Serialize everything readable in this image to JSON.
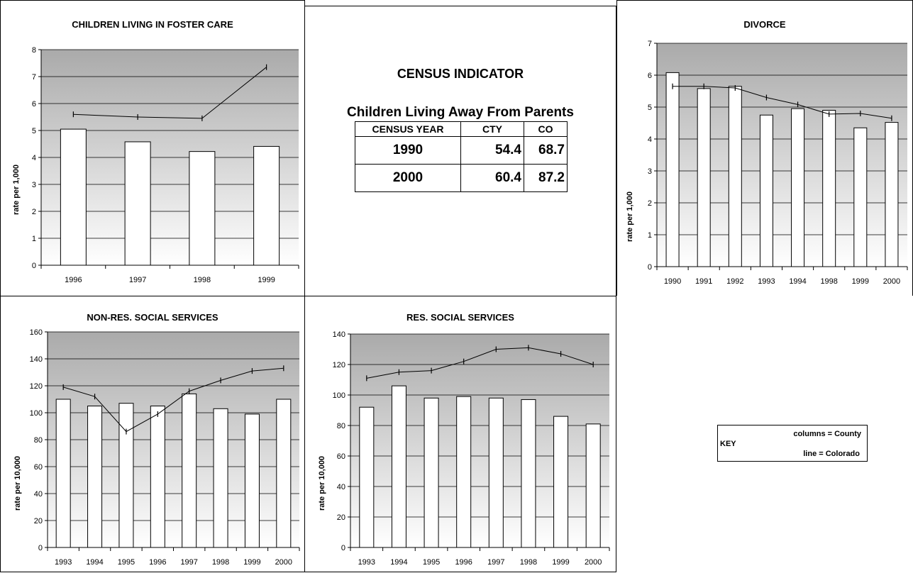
{
  "chart_data": [
    {
      "type": "bar",
      "title": "CHILDREN LIVING IN FOSTER CARE",
      "ylabel": "rate per 1,000",
      "xlabel": "",
      "categories": [
        "1996",
        "1997",
        "1998",
        "1999"
      ],
      "series": [
        {
          "name": "County",
          "values": [
            5.05,
            4.58,
            4.22,
            4.41
          ]
        },
        {
          "name": "Colorado",
          "values": [
            5.6,
            5.5,
            5.45,
            7.35
          ]
        }
      ],
      "ylim": [
        0,
        8
      ],
      "yticks": [
        "0",
        "1",
        "2",
        "3",
        "4",
        "5",
        "6",
        "7",
        "8"
      ]
    },
    {
      "type": "bar",
      "title": "DIVORCE",
      "ylabel": "rate per 1,000",
      "xlabel": "",
      "categories": [
        "1990",
        "1991",
        "1992",
        "1993",
        "1994",
        "1998",
        "1999",
        "2000"
      ],
      "series": [
        {
          "name": "County",
          "values": [
            6.08,
            5.58,
            5.65,
            4.75,
            4.95,
            4.9,
            4.35,
            4.52
          ]
        },
        {
          "name": "Colorado",
          "values": [
            5.65,
            5.65,
            5.6,
            5.3,
            5.08,
            4.78,
            4.8,
            4.65
          ]
        }
      ],
      "ylim": [
        0,
        7
      ],
      "yticks": [
        "0",
        "1",
        "2",
        "3",
        "4",
        "5",
        "6",
        "7"
      ]
    },
    {
      "type": "bar",
      "title": "NON-RES. SOCIAL SERVICES",
      "ylabel": "rate per 10,000",
      "xlabel": "",
      "categories": [
        "1993",
        "1994",
        "1995",
        "1996",
        "1997",
        "1998",
        "1999",
        "2000"
      ],
      "series": [
        {
          "name": "County",
          "values": [
            110,
            105,
            107,
            105,
            114,
            103,
            99,
            110
          ]
        },
        {
          "name": "Colorado",
          "values": [
            119,
            112,
            86,
            99,
            116,
            124,
            131,
            133
          ]
        }
      ],
      "ylim": [
        0,
        160
      ],
      "yticks": [
        "0",
        "20",
        "40",
        "60",
        "80",
        "100",
        "120",
        "140",
        "160"
      ]
    },
    {
      "type": "bar",
      "title": "RES. SOCIAL SERVICES",
      "ylabel": "rate per 10,000",
      "xlabel": "",
      "categories": [
        "1993",
        "1994",
        "1995",
        "1996",
        "1997",
        "1998",
        "1999",
        "2000"
      ],
      "series": [
        {
          "name": "County",
          "values": [
            92,
            106,
            98,
            99,
            98,
            97,
            86,
            81
          ]
        },
        {
          "name": "Colorado",
          "values": [
            111,
            115,
            116,
            122,
            130,
            131,
            127,
            120
          ]
        }
      ],
      "ylim": [
        0,
        140
      ],
      "yticks": [
        "0",
        "20",
        "40",
        "60",
        "80",
        "100",
        "120",
        "140"
      ]
    }
  ],
  "census": {
    "title": "CENSUS INDICATOR",
    "subtitle": "Children Living Away From Parents",
    "headers": [
      "CENSUS YEAR",
      "CTY",
      "CO"
    ],
    "rows": [
      [
        "1990",
        "54.4",
        "68.7"
      ],
      [
        "2000",
        "60.4",
        "87.2"
      ]
    ]
  },
  "key": {
    "label": "KEY",
    "columns_text": "columns = County",
    "line_text": "line = Colorado"
  },
  "colors": {
    "plot_top": "#aaaaaa",
    "plot_bottom": "#ffffff",
    "bar_fill": "#ffffff",
    "line": "#000000",
    "grid": "#000000",
    "border": "#000000"
  }
}
